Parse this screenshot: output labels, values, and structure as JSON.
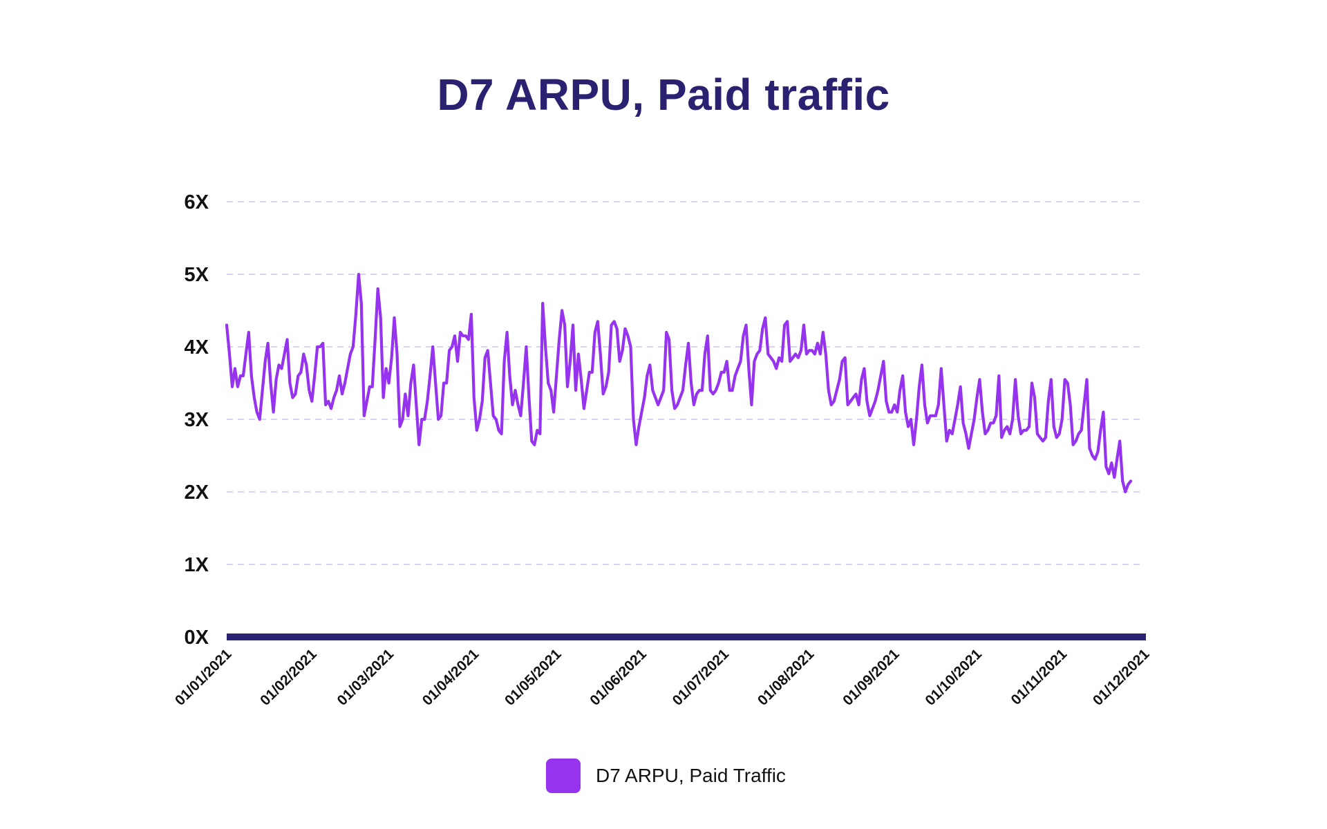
{
  "chart_data": {
    "type": "line",
    "title": "D7 ARPU, Paid traffic",
    "xlabel": "",
    "ylabel": "",
    "ylim": [
      0,
      6
    ],
    "yticks": [
      0,
      1,
      2,
      3,
      4,
      5,
      6
    ],
    "ytick_labels": [
      "0X",
      "1X",
      "2X",
      "3X",
      "4X",
      "5X",
      "6X"
    ],
    "xticks": [
      "01/01/2021",
      "01/02/2021",
      "01/03/2021",
      "01/04/2021",
      "01/05/2021",
      "01/06/2021",
      "01/07/2021",
      "01/08/2021",
      "01/09/2021",
      "01/10/2021",
      "01/11/2021",
      "01/12/2021"
    ],
    "grid": true,
    "legend_position": "bottom-center",
    "colors": {
      "line": "#9533ee",
      "title": "#2a2270",
      "axis": "#2a2270",
      "grid": "#c8c6f2"
    },
    "series": [
      {
        "name": "D7 ARPU, Paid Traffic",
        "x_start": "01/01/2021",
        "step_days": 1,
        "values": [
          4.3,
          3.9,
          3.45,
          3.7,
          3.45,
          3.6,
          3.6,
          3.9,
          4.2,
          3.6,
          3.3,
          3.1,
          3.0,
          3.4,
          3.8,
          4.05,
          3.5,
          3.1,
          3.55,
          3.75,
          3.7,
          3.9,
          4.1,
          3.5,
          3.3,
          3.35,
          3.6,
          3.65,
          3.9,
          3.75,
          3.4,
          3.25,
          3.6,
          4.0,
          4.0,
          4.05,
          3.2,
          3.25,
          3.15,
          3.3,
          3.4,
          3.6,
          3.35,
          3.5,
          3.7,
          3.9,
          4.0,
          4.45,
          5.0,
          4.6,
          3.05,
          3.25,
          3.45,
          3.45,
          4.1,
          4.8,
          4.4,
          3.3,
          3.7,
          3.5,
          3.85,
          4.4,
          3.9,
          2.9,
          3.0,
          3.35,
          3.05,
          3.5,
          3.75,
          3.2,
          2.65,
          3.0,
          3.0,
          3.25,
          3.6,
          4.0,
          3.5,
          3.0,
          3.05,
          3.5,
          3.5,
          3.95,
          4.0,
          4.15,
          3.8,
          4.2,
          4.15,
          4.15,
          4.1,
          4.45,
          3.3,
          2.85,
          3.0,
          3.25,
          3.85,
          3.95,
          3.5,
          3.05,
          3.0,
          2.85,
          2.8,
          3.8,
          4.2,
          3.6,
          3.2,
          3.4,
          3.2,
          3.05,
          3.5,
          4.0,
          3.3,
          2.7,
          2.65,
          2.85,
          2.8,
          4.6,
          4.0,
          3.5,
          3.4,
          3.1,
          3.6,
          4.1,
          4.5,
          4.3,
          3.45,
          3.8,
          4.3,
          3.4,
          3.9,
          3.55,
          3.15,
          3.4,
          3.65,
          3.65,
          4.2,
          4.35,
          3.9,
          3.35,
          3.45,
          3.65,
          4.3,
          4.35,
          4.25,
          3.8,
          3.95,
          4.25,
          4.15,
          4.0,
          3.0,
          2.65,
          2.9,
          3.1,
          3.3,
          3.6,
          3.75,
          3.4,
          3.3,
          3.2,
          3.3,
          3.4,
          4.2,
          4.1,
          3.4,
          3.15,
          3.2,
          3.3,
          3.4,
          3.75,
          4.05,
          3.5,
          3.2,
          3.35,
          3.4,
          3.4,
          3.9,
          4.15,
          3.4,
          3.35,
          3.4,
          3.5,
          3.65,
          3.65,
          3.8,
          3.4,
          3.4,
          3.6,
          3.7,
          3.8,
          4.15,
          4.3,
          3.7,
          3.2,
          3.8,
          3.9,
          3.95,
          4.25,
          4.4,
          3.9,
          3.85,
          3.8,
          3.7,
          3.85,
          3.8,
          4.3,
          4.35,
          3.8,
          3.85,
          3.9,
          3.85,
          3.95,
          4.3,
          3.9,
          3.95,
          3.95,
          3.9,
          4.05,
          3.9,
          4.2,
          3.9,
          3.4,
          3.2,
          3.25,
          3.4,
          3.55,
          3.8,
          3.85,
          3.2,
          3.25,
          3.3,
          3.35,
          3.2,
          3.55,
          3.7,
          3.25,
          3.05,
          3.15,
          3.25,
          3.4,
          3.6,
          3.8,
          3.25,
          3.1,
          3.1,
          3.2,
          3.1,
          3.4,
          3.6,
          3.1,
          2.9,
          3.0,
          2.65,
          3.0,
          3.45,
          3.75,
          3.2,
          2.95,
          3.05,
          3.05,
          3.05,
          3.2,
          3.7,
          3.2,
          2.7,
          2.85,
          2.8,
          3.0,
          3.2,
          3.45,
          2.95,
          2.8,
          2.6,
          2.8,
          3.0,
          3.3,
          3.55,
          3.1,
          2.8,
          2.85,
          2.95,
          2.95,
          3.05,
          3.6,
          2.75,
          2.85,
          2.9,
          2.8,
          3.0,
          3.55,
          3.05,
          2.8,
          2.85,
          2.85,
          2.9,
          3.5,
          3.3,
          2.8,
          2.75,
          2.7,
          2.75,
          3.25,
          3.55,
          2.9,
          2.75,
          2.8,
          3.0,
          3.55,
          3.5,
          3.2,
          2.65,
          2.7,
          2.8,
          2.85,
          3.2,
          3.55,
          2.6,
          2.5,
          2.45,
          2.55,
          2.85,
          3.1,
          2.35,
          2.25,
          2.4,
          2.2,
          2.45,
          2.7,
          2.15,
          2.0,
          2.1,
          2.15
        ]
      }
    ]
  }
}
